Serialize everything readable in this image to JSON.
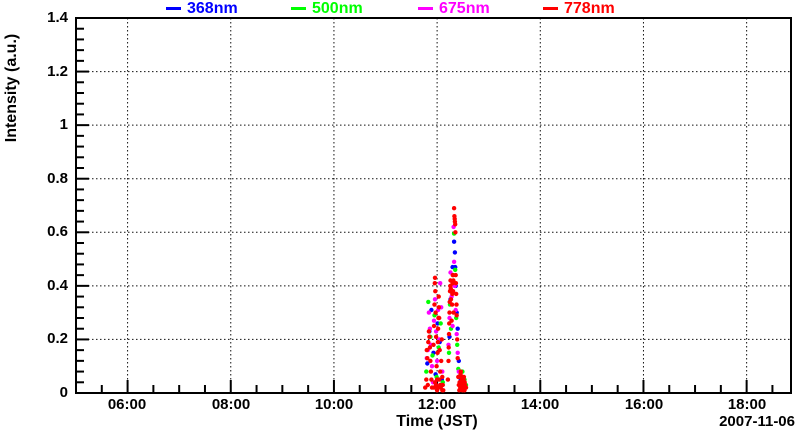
{
  "chart_data": {
    "type": "scatter",
    "title": "",
    "xlabel": "Time (JST)",
    "ylabel": "Intensity (a.u.)",
    "date_label": "2007-11-06",
    "xlim_hours": [
      5.0,
      18.86
    ],
    "ylim": [
      0,
      1.4
    ],
    "x_major_ticks_hours": [
      6,
      8,
      10,
      12,
      14,
      16,
      18
    ],
    "x_tick_labels": [
      "06:00",
      "08:00",
      "10:00",
      "12:00",
      "14:00",
      "16:00",
      "18:00"
    ],
    "x_minor_tick_step_hours": 0.5,
    "y_major_ticks": [
      0,
      0.2,
      0.4,
      0.6,
      0.8,
      1,
      1.2,
      1.4
    ],
    "y_tick_labels": [
      "0",
      "0.2",
      "0.4",
      "0.6",
      "0.8",
      "1",
      "1.2",
      "1.4"
    ],
    "y_minor_tick_step": 0.04,
    "grid": "dotted lines at major ticks, both axes",
    "grid_color": "#111111",
    "frame_color": "#000000",
    "legend_position": "top, horizontal, outside frame",
    "marker": "small filled circle",
    "series": [
      {
        "name": "368nm",
        "color": "#0000ff",
        "points": [
          [
            11.81,
            0.11
          ],
          [
            11.85,
            0.23
          ],
          [
            11.89,
            0.31
          ],
          [
            11.93,
            0.15
          ],
          [
            11.97,
            0.07
          ],
          [
            12.01,
            0.26
          ],
          [
            12.05,
            0.19
          ],
          [
            12.09,
            0.05
          ],
          [
            12.24,
            0.21
          ],
          [
            12.26,
            0.35
          ],
          [
            12.3,
            0.47
          ],
          [
            12.33,
            0.565
          ],
          [
            12.345,
            0.525
          ],
          [
            12.35,
            0.47
          ],
          [
            12.36,
            0.4
          ],
          [
            12.38,
            0.3
          ],
          [
            12.4,
            0.24
          ],
          [
            12.42,
            0.12
          ],
          [
            12.46,
            0.05
          ],
          [
            12.5,
            0.03
          ]
        ]
      },
      {
        "name": "500nm",
        "color": "#00ff00",
        "points": [
          [
            11.79,
            0.08
          ],
          [
            11.83,
            0.34
          ],
          [
            11.87,
            0.21
          ],
          [
            11.91,
            0.14
          ],
          [
            11.95,
            0.29
          ],
          [
            11.99,
            0.06
          ],
          [
            12.03,
            0.17
          ],
          [
            12.07,
            0.26
          ],
          [
            12.11,
            0.04
          ],
          [
            12.23,
            0.15
          ],
          [
            12.25,
            0.33
          ],
          [
            12.27,
            0.24
          ],
          [
            12.31,
            0.44
          ],
          [
            12.33,
            0.595
          ],
          [
            12.35,
            0.46
          ],
          [
            12.37,
            0.28
          ],
          [
            12.39,
            0.18
          ],
          [
            12.41,
            0.09
          ],
          [
            12.45,
            0.06
          ],
          [
            12.49,
            0.08
          ],
          [
            12.53,
            0.05
          ],
          [
            12.56,
            0.03
          ]
        ]
      },
      {
        "name": "675nm",
        "color": "#ff00ff",
        "points": [
          [
            11.8,
            0.13
          ],
          [
            11.82,
            0.16
          ],
          [
            11.84,
            0.3
          ],
          [
            11.86,
            0.24
          ],
          [
            11.88,
            0.18
          ],
          [
            11.9,
            0.1
          ],
          [
            11.92,
            0.04
          ],
          [
            11.94,
            0.27
          ],
          [
            11.96,
            0.35
          ],
          [
            11.98,
            0.23
          ],
          [
            12.0,
            0.12
          ],
          [
            12.02,
            0.31
          ],
          [
            12.04,
            0.2
          ],
          [
            12.06,
            0.41
          ],
          [
            12.08,
            0.32
          ],
          [
            12.1,
            0.08
          ],
          [
            12.22,
            0.18
          ],
          [
            12.24,
            0.28
          ],
          [
            12.26,
            0.45
          ],
          [
            12.28,
            0.36
          ],
          [
            12.3,
            0.25
          ],
          [
            12.32,
            0.62
          ],
          [
            12.33,
            0.49
          ],
          [
            12.34,
            0.4
          ],
          [
            12.36,
            0.31
          ],
          [
            12.38,
            0.22
          ],
          [
            12.4,
            0.15
          ],
          [
            12.42,
            0.08
          ],
          [
            12.46,
            0.04
          ],
          [
            12.5,
            0.05
          ],
          [
            12.54,
            0.03
          ],
          [
            12.555,
            0.02
          ]
        ]
      },
      {
        "name": "778nm",
        "color": "#ff0000",
        "points": [
          [
            11.77,
            0.02
          ],
          [
            11.79,
            0.05
          ],
          [
            11.8,
            0.16
          ],
          [
            11.81,
            0.13
          ],
          [
            11.82,
            0.03
          ],
          [
            11.83,
            0.19
          ],
          [
            11.84,
            0.23
          ],
          [
            11.85,
            0.21
          ],
          [
            11.86,
            0.17
          ],
          [
            11.87,
            0.12
          ],
          [
            11.88,
            0.08
          ],
          [
            11.89,
            0.05
          ],
          [
            11.9,
            0.02
          ],
          [
            11.93,
            0.18
          ],
          [
            11.94,
            0.25
          ],
          [
            11.94,
            0.02
          ],
          [
            11.95,
            0.33
          ],
          [
            11.955,
            0.41
          ],
          [
            11.96,
            0.43
          ],
          [
            11.96,
            0.04
          ],
          [
            11.965,
            0.38
          ],
          [
            11.97,
            0.3
          ],
          [
            11.98,
            0.21
          ],
          [
            11.98,
            0.03
          ],
          [
            11.99,
            0.1
          ],
          [
            12.0,
            0.05
          ],
          [
            12.0,
            0.01
          ],
          [
            12.01,
            0.15
          ],
          [
            12.015,
            0.19
          ],
          [
            12.02,
            0.24
          ],
          [
            12.02,
            0.02
          ],
          [
            12.025,
            0.28
          ],
          [
            12.03,
            0.36
          ],
          [
            12.035,
            0.32
          ],
          [
            12.04,
            0.28
          ],
          [
            12.04,
            0.05
          ],
          [
            12.05,
            0.16
          ],
          [
            12.06,
            0.08
          ],
          [
            12.06,
            0.03
          ],
          [
            12.07,
            0.02
          ],
          [
            12.08,
            0.12
          ],
          [
            12.09,
            0.2
          ],
          [
            12.1,
            0.06
          ],
          [
            12.1,
            0.01
          ],
          [
            12.11,
            0.03
          ],
          [
            12.12,
            0.01
          ],
          [
            12.21,
            0.05
          ],
          [
            12.22,
            0.12
          ],
          [
            12.225,
            0.17
          ],
          [
            12.23,
            0.22
          ],
          [
            12.235,
            0.26
          ],
          [
            12.24,
            0.3
          ],
          [
            12.245,
            0.34
          ],
          [
            12.25,
            0.38
          ],
          [
            12.255,
            0.4
          ],
          [
            12.26,
            0.42
          ],
          [
            12.265,
            0.39
          ],
          [
            12.27,
            0.35
          ],
          [
            12.28,
            0.27
          ],
          [
            12.29,
            0.33
          ],
          [
            12.295,
            0.37
          ],
          [
            12.3,
            0.41
          ],
          [
            12.305,
            0.44
          ],
          [
            12.31,
            0.38
          ],
          [
            12.315,
            0.42
          ],
          [
            12.32,
            0.3
          ],
          [
            12.33,
            0.69
          ],
          [
            12.335,
            0.66
          ],
          [
            12.34,
            0.65
          ],
          [
            12.345,
            0.64
          ],
          [
            12.35,
            0.63
          ],
          [
            12.355,
            0.6
          ],
          [
            12.36,
            0.44
          ],
          [
            12.365,
            0.41
          ],
          [
            12.37,
            0.37
          ],
          [
            12.375,
            0.33
          ],
          [
            12.38,
            0.29
          ],
          [
            12.39,
            0.2
          ],
          [
            12.4,
            0.13
          ],
          [
            12.41,
            0.06
          ],
          [
            12.42,
            0.03
          ],
          [
            12.43,
            0.01
          ],
          [
            12.435,
            0.04
          ],
          [
            12.44,
            0.06
          ],
          [
            12.45,
            0.02
          ],
          [
            12.455,
            0.07
          ],
          [
            12.46,
            0.08
          ],
          [
            12.47,
            0.03
          ],
          [
            12.475,
            0.06
          ],
          [
            12.48,
            0.05
          ],
          [
            12.49,
            0.01
          ],
          [
            12.495,
            0.03
          ],
          [
            12.5,
            0.04
          ],
          [
            12.51,
            0.02
          ],
          [
            12.515,
            0.05
          ],
          [
            12.52,
            0.06
          ],
          [
            12.53,
            0.01
          ],
          [
            12.535,
            0.04
          ],
          [
            12.54,
            0.03
          ],
          [
            12.56,
            0.02
          ]
        ]
      }
    ]
  }
}
